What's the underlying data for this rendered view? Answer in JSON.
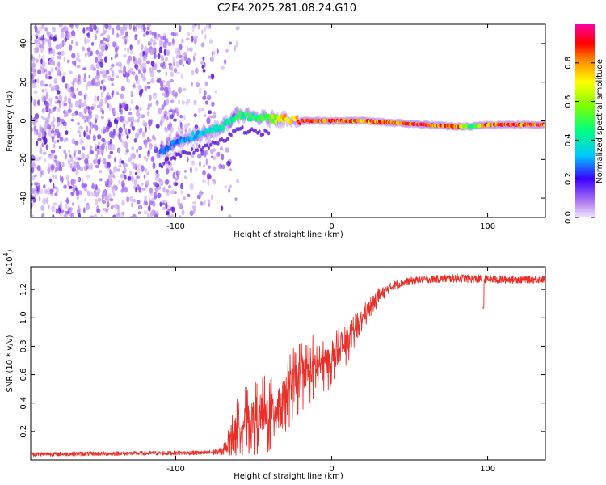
{
  "title": "C2E4.2025.281.08.24.G10",
  "colors": {
    "snr_line": "#e8302a",
    "axis": "#000000",
    "speckle_light": "#c9a8ef",
    "speckle_mid": "#9b5cf0",
    "speckle_dark": "#5a10d6"
  },
  "chart_data": [
    {
      "type": "heatmap",
      "name": "spectrogram",
      "xlabel": "Height of straight line (km)",
      "ylabel": "Frequency (Hz)",
      "xlim": [
        -193,
        137
      ],
      "ylim": [
        -50,
        50
      ],
      "xticks": [
        -100,
        0,
        100
      ],
      "xtick_labels": [
        "-100",
        "0",
        "100"
      ],
      "yticks": [
        -40,
        -20,
        0,
        20,
        40
      ],
      "ytick_labels": [
        "-40",
        "-20",
        "0",
        "20",
        "40"
      ],
      "colorbar": {
        "label": "Normalized spectral amplitude",
        "range": [
          0,
          1
        ],
        "ticks": [
          0,
          0.2,
          0.4,
          0.6,
          0.8
        ],
        "tick_labels": [
          "0.0",
          "0.2",
          "0.4",
          "0.6",
          "0.8"
        ]
      },
      "ridge": {
        "x": [
          -110,
          -100,
          -90,
          -80,
          -70,
          -60,
          -50,
          -40,
          -30,
          -20,
          -10,
          0,
          20,
          40,
          60,
          80,
          90,
          100,
          137
        ],
        "freq_hz": [
          -16,
          -11,
          -8,
          -6,
          -3,
          3,
          2,
          1,
          1,
          0,
          0,
          0,
          0,
          -1,
          -2,
          -3,
          -3,
          -2,
          -2
        ],
        "amplitude": [
          0.3,
          0.3,
          0.35,
          0.4,
          0.45,
          0.5,
          0.5,
          0.6,
          0.8,
          0.95,
          0.9,
          0.95,
          0.9,
          0.9,
          0.95,
          0.95,
          0.5,
          0.95,
          0.95
        ]
      },
      "noise_region_x": [
        -193,
        -75
      ]
    },
    {
      "type": "line",
      "name": "snr",
      "xlabel": "Height of straight line (km)",
      "ylabel": "SNR (10 * v/v)",
      "y_multiplier": "(x10",
      "y_multiplier_exp": "4",
      "y_multiplier_close": ")",
      "xlim": [
        -193,
        137
      ],
      "ylim": [
        0,
        1.36
      ],
      "xticks": [
        -100,
        0,
        100
      ],
      "xtick_labels": [
        "-100",
        "0",
        "100"
      ],
      "yticks": [
        0.2,
        0.4,
        0.6,
        0.8,
        1.0,
        1.2
      ],
      "ytick_labels": [
        "0.2",
        "0.4",
        "0.6",
        "0.8",
        "1.0",
        "1.2"
      ],
      "envelope": {
        "x": [
          -193,
          -80,
          -70,
          -65,
          -60,
          -55,
          -50,
          -40,
          -30,
          -20,
          -10,
          0,
          10,
          20,
          30,
          40,
          50,
          60,
          80,
          100,
          137
        ],
        "mean": [
          0.04,
          0.05,
          0.06,
          0.15,
          0.25,
          0.28,
          0.3,
          0.32,
          0.45,
          0.6,
          0.66,
          0.7,
          0.82,
          1.0,
          1.15,
          1.23,
          1.26,
          1.27,
          1.28,
          1.27,
          1.27
        ],
        "spread": [
          0.015,
          0.015,
          0.03,
          0.1,
          0.2,
          0.2,
          0.22,
          0.25,
          0.22,
          0.22,
          0.2,
          0.16,
          0.12,
          0.08,
          0.05,
          0.03,
          0.025,
          0.025,
          0.03,
          0.03,
          0.025
        ]
      },
      "dips": [
        {
          "x": 97,
          "y": 1.07
        }
      ]
    }
  ]
}
